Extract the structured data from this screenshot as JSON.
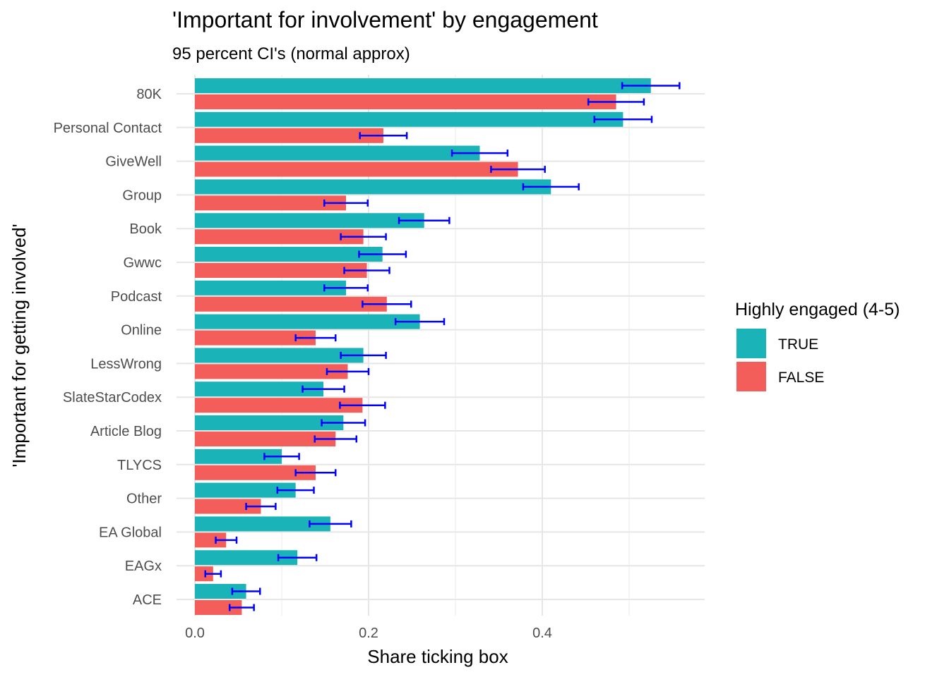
{
  "chart_data": {
    "type": "bar",
    "orientation": "horizontal",
    "title": "'Important for involvement' by engagement",
    "subtitle": "95 percent CI's (normal approx)",
    "xlabel": "Share ticking box",
    "ylabel": "'Important for getting involved'",
    "xlim": [
      0,
      0.58
    ],
    "x_ticks": [
      "0.0",
      "0.2",
      "0.4"
    ],
    "x_tick_values": [
      0.0,
      0.2,
      0.4
    ],
    "grid": true,
    "legend_position": "right",
    "legend_title": "Highly engaged (4-5)",
    "categories": [
      "80K",
      "Personal Contact",
      "GiveWell",
      "Group",
      "Book",
      "Gwwc",
      "Podcast",
      "Online",
      "LessWrong",
      "SlateStarCodex",
      "Article Blog",
      "TLYCS",
      "Other",
      "EA Global",
      "EAGx",
      "ACE"
    ],
    "series": [
      {
        "name": "TRUE",
        "color": "#1ab3b8",
        "values": [
          0.525,
          0.493,
          0.328,
          0.41,
          0.264,
          0.216,
          0.174,
          0.259,
          0.194,
          0.148,
          0.171,
          0.1,
          0.116,
          0.156,
          0.118,
          0.059
        ],
        "ci_low": [
          0.492,
          0.46,
          0.296,
          0.378,
          0.235,
          0.189,
          0.149,
          0.231,
          0.168,
          0.124,
          0.146,
          0.08,
          0.095,
          0.132,
          0.096,
          0.043
        ],
        "ci_high": [
          0.558,
          0.526,
          0.36,
          0.442,
          0.293,
          0.243,
          0.199,
          0.287,
          0.22,
          0.172,
          0.196,
          0.12,
          0.137,
          0.18,
          0.14,
          0.075
        ]
      },
      {
        "name": "FALSE",
        "color": "#f35e5a",
        "values": [
          0.485,
          0.217,
          0.372,
          0.174,
          0.194,
          0.198,
          0.221,
          0.139,
          0.176,
          0.193,
          0.162,
          0.139,
          0.076,
          0.036,
          0.021,
          0.054
        ],
        "ci_low": [
          0.453,
          0.19,
          0.341,
          0.149,
          0.168,
          0.172,
          0.193,
          0.116,
          0.152,
          0.167,
          0.138,
          0.116,
          0.059,
          0.024,
          0.012,
          0.04
        ],
        "ci_high": [
          0.517,
          0.244,
          0.403,
          0.199,
          0.22,
          0.224,
          0.249,
          0.162,
          0.2,
          0.219,
          0.186,
          0.162,
          0.093,
          0.048,
          0.03,
          0.068
        ]
      }
    ],
    "error_bar_color": "#0000ff"
  }
}
